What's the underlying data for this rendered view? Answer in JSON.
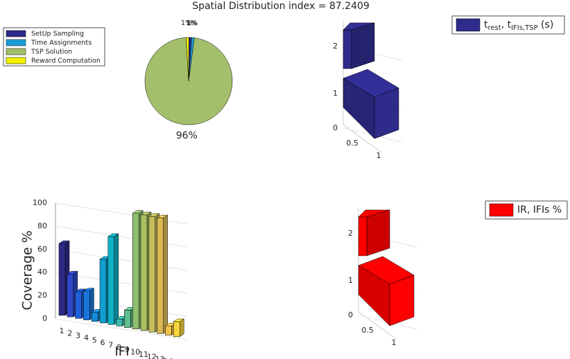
{
  "chart_data": [
    {
      "type": "pie",
      "title": "Spatial Distribution index = 87.2409",
      "categories": [
        "SetUp Sampling",
        "Time Assignments",
        "TSP Solution",
        "Reward Computation"
      ],
      "values": [
        1,
        1,
        96,
        1
      ],
      "value_labels": [
        "1%",
        "1%",
        "96%",
        "1%"
      ],
      "colors": [
        "#2e2b8a",
        "#1d9fd8",
        "#a3bf6c",
        "#f2f200"
      ],
      "legend": "upper-left"
    },
    {
      "type": "bar3",
      "legend_title": {
        "main": "t",
        "sub1": "rest",
        "mid": ", t",
        "sub2": "IFIs,TSP",
        "end": " (s)"
      },
      "categories": [
        1,
        2
      ],
      "values": [
        1,
        1
      ],
      "color": "#2e2b8a",
      "yticks": [
        0,
        1,
        2
      ],
      "xticks": [
        0.5,
        1
      ]
    },
    {
      "type": "bar3cov",
      "xlabel": "IFI",
      "ylabel": "Coverage %",
      "categories": [
        "1",
        "2",
        "3",
        "4",
        "5",
        "6",
        "7",
        "8",
        "9",
        "10",
        "11",
        "12",
        "13",
        "14",
        "15"
      ],
      "values": [
        62,
        37,
        23,
        25,
        8,
        55,
        76,
        6,
        15,
        100,
        100,
        100,
        100,
        8,
        13
      ],
      "colors": [
        "#2d2a85",
        "#2f47c7",
        "#2060d8",
        "#1a76dc",
        "#168bd6",
        "#119fcf",
        "#10b0c4",
        "#3ab8a8",
        "#60bd8c",
        "#8cbf70",
        "#a9bf62",
        "#c4bd5a",
        "#dab955",
        "#f0c04a",
        "#f9d43a"
      ],
      "ylim": [
        0,
        100
      ],
      "yticks": [
        0,
        20,
        40,
        60,
        80,
        100
      ],
      "grid": true
    },
    {
      "type": "bar3",
      "legend_title": {
        "main": "IR, IFIs %"
      },
      "categories": [
        1,
        2
      ],
      "values": [
        1,
        1
      ],
      "color": "#ff0000",
      "yticks": [
        0,
        1,
        2
      ],
      "xticks": [
        0.5,
        1
      ]
    }
  ]
}
